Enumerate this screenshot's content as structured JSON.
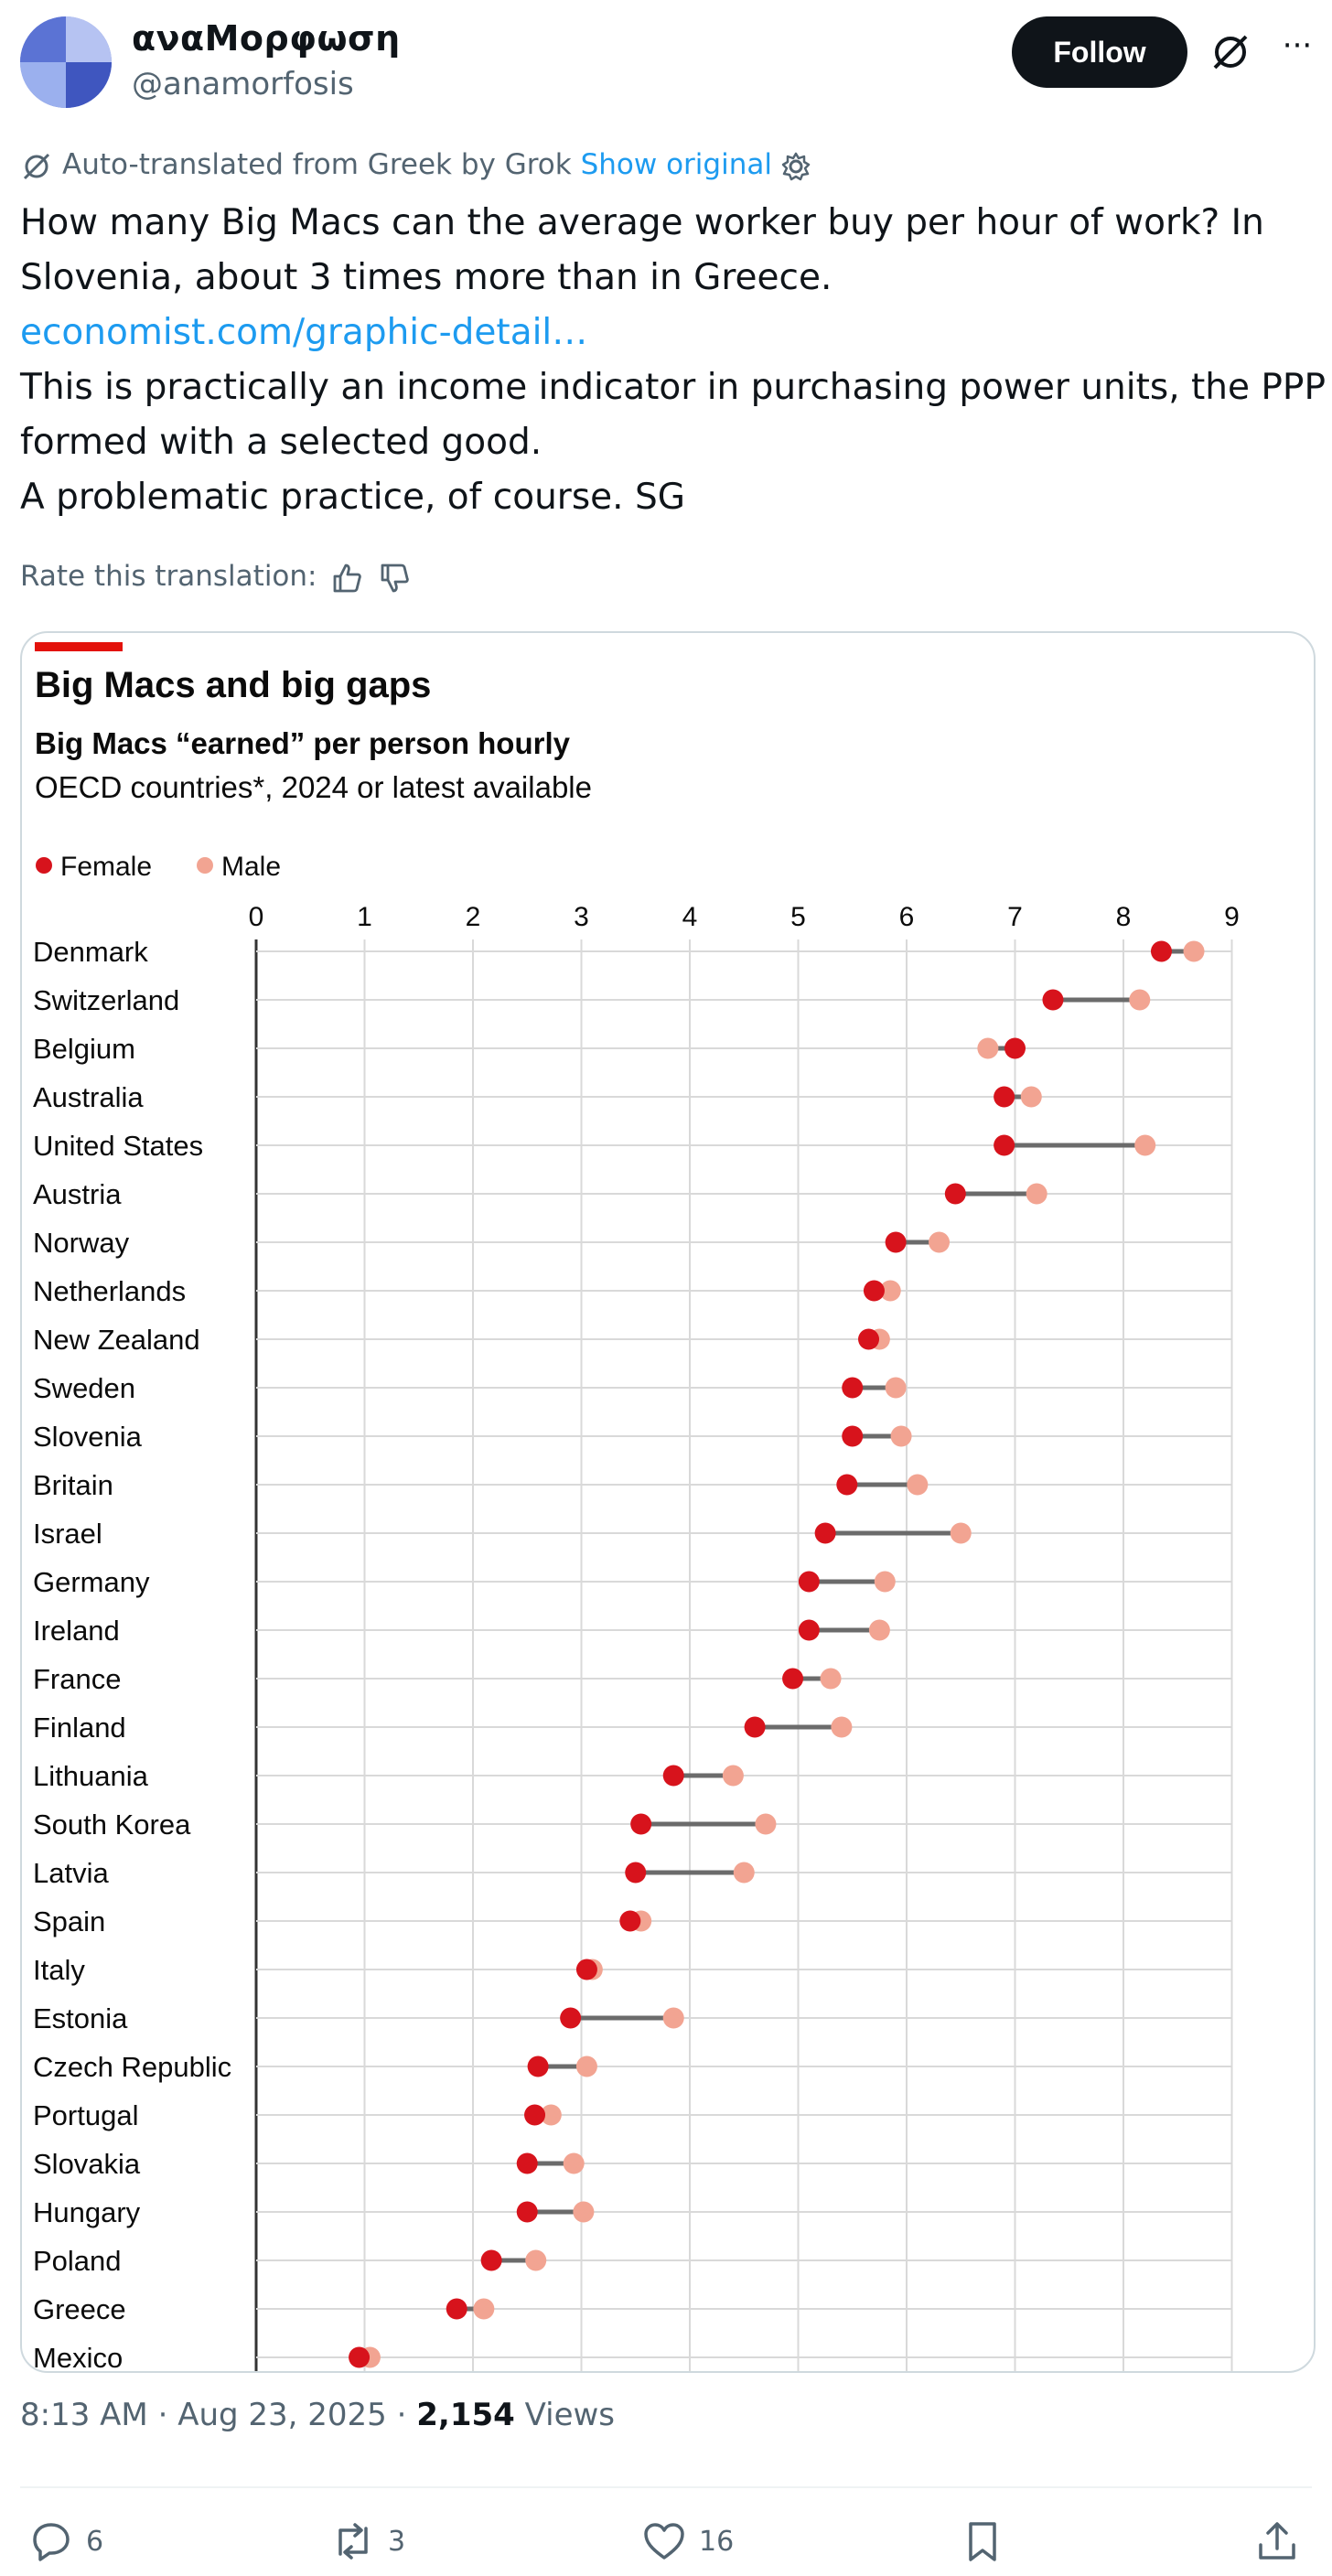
{
  "author": {
    "display_name": "αναΜορφωση",
    "handle": "@anamorfosis",
    "follow_label": "Follow",
    "more_icon": "more-dots-icon"
  },
  "translation": {
    "notice": "Auto-translated from Greek by Grok",
    "show_original": "Show original",
    "rate_label": "Rate this translation:"
  },
  "tweet": {
    "line1": "How many Big Macs can the average worker buy per hour of work? In",
    "line2": "Slovenia, about 3 times more than in Greece.",
    "link": "economist.com/graphic-detail…",
    "line4": "This is practically an income indicator in purchasing power units, the PPP",
    "line5": "formed with a selected good.",
    "line6": "A problematic practice, of course. SG"
  },
  "colors": {
    "accent_red": "#e3120b",
    "female": "#d7131c",
    "male": "#f2a492",
    "link": "#1d9bf0"
  },
  "chart_data": {
    "type": "dumbbell",
    "title": "Big Macs and big gaps",
    "subtitle": "Big Macs “earned” per person hourly",
    "note": "OECD countries*, 2024 or latest available",
    "legend": [
      {
        "name": "Female",
        "color": "#d7131c"
      },
      {
        "name": "Male",
        "color": "#f2a492"
      }
    ],
    "legend_position": "top-left",
    "x_ticks": [
      "0",
      "1",
      "2",
      "3",
      "4",
      "5",
      "6",
      "7",
      "8",
      "9"
    ],
    "xlim": [
      0,
      9
    ],
    "grid": true,
    "categories": [
      "Denmark",
      "Switzerland",
      "Belgium",
      "Australia",
      "United States",
      "Austria",
      "Norway",
      "Netherlands",
      "New Zealand",
      "Sweden",
      "Slovenia",
      "Britain",
      "Israel",
      "Germany",
      "Ireland",
      "France",
      "Finland",
      "Lithuania",
      "South Korea",
      "Latvia",
      "Spain",
      "Italy",
      "Estonia",
      "Czech Republic",
      "Portugal",
      "Slovakia",
      "Hungary",
      "Poland",
      "Greece",
      "Mexico"
    ],
    "series": [
      {
        "name": "Female",
        "values": [
          8.35,
          7.35,
          7.0,
          6.9,
          6.9,
          6.45,
          5.9,
          5.7,
          5.65,
          5.5,
          5.5,
          5.45,
          5.25,
          5.1,
          5.1,
          4.95,
          4.6,
          3.85,
          3.55,
          3.5,
          3.45,
          3.05,
          2.9,
          2.6,
          2.57,
          2.5,
          2.5,
          2.17,
          1.85,
          0.95
        ]
      },
      {
        "name": "Male",
        "values": [
          8.65,
          8.15,
          6.75,
          7.15,
          8.2,
          7.2,
          6.3,
          5.85,
          5.75,
          5.9,
          5.95,
          6.1,
          6.5,
          5.8,
          5.75,
          5.3,
          5.4,
          4.4,
          4.7,
          4.5,
          3.55,
          3.1,
          3.85,
          3.05,
          2.72,
          2.93,
          3.02,
          2.58,
          2.1,
          1.05
        ]
      }
    ]
  },
  "meta": {
    "time": "8:13 AM",
    "sep": "·",
    "date": "Aug 23, 2025",
    "views_count": "2,154",
    "views_label": "Views"
  },
  "actions": {
    "replies": "6",
    "reposts": "3",
    "likes": "16"
  }
}
